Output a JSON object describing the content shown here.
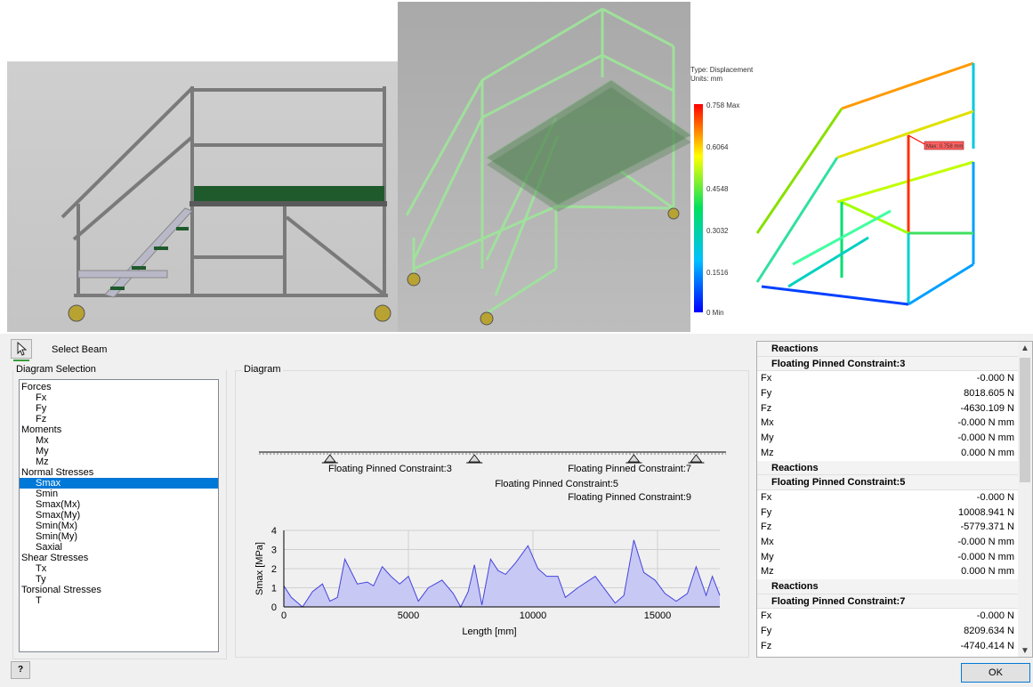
{
  "legend": {
    "type_label": "Type: Displacement",
    "units_label": "Units: mm",
    "max_label": "0.758 Max",
    "ticks": [
      "0.6064",
      "0.4548",
      "0.3032",
      "0.1516"
    ],
    "min_label": "0 Min",
    "probe_label": "Max: 0.758 mm"
  },
  "toolbar": {
    "select_beam_label": "Select Beam"
  },
  "diagram_selection": {
    "title": "Diagram Selection",
    "items": [
      {
        "label": "Forces",
        "level": 0
      },
      {
        "label": "Fx",
        "level": 1
      },
      {
        "label": "Fy",
        "level": 1
      },
      {
        "label": "Fz",
        "level": 1
      },
      {
        "label": "Moments",
        "level": 0
      },
      {
        "label": "Mx",
        "level": 1
      },
      {
        "label": "My",
        "level": 1
      },
      {
        "label": "Mz",
        "level": 1
      },
      {
        "label": "Normal Stresses",
        "level": 0
      },
      {
        "label": "Smax",
        "level": 1,
        "selected": true
      },
      {
        "label": "Smin",
        "level": 1
      },
      {
        "label": "Smax(Mx)",
        "level": 1
      },
      {
        "label": "Smax(My)",
        "level": 1
      },
      {
        "label": "Smin(Mx)",
        "level": 1
      },
      {
        "label": "Smin(My)",
        "level": 1
      },
      {
        "label": "Saxial",
        "level": 1
      },
      {
        "label": "Shear Stresses",
        "level": 0
      },
      {
        "label": "Tx",
        "level": 1
      },
      {
        "label": "Ty",
        "level": 1
      },
      {
        "label": "Torsional Stresses",
        "level": 0
      },
      {
        "label": "T",
        "level": 1
      }
    ]
  },
  "diagram": {
    "title": "Diagram",
    "constraints": [
      {
        "label": "Floating Pinned Constraint:3",
        "x": 1850
      },
      {
        "label": "Floating Pinned Constraint:5",
        "x": 7650
      },
      {
        "label": "Floating Pinned Constraint:7",
        "x": 14050
      },
      {
        "label": "Floating Pinned Constraint:9",
        "x": 16550
      }
    ]
  },
  "chart_data": {
    "type": "area",
    "xlabel": "Length [mm]",
    "ylabel": "Smax [MPa]",
    "xlim": [
      0,
      17500
    ],
    "ylim": [
      0,
      4
    ],
    "xticks": [
      0,
      5000,
      10000,
      15000
    ],
    "yticks": [
      0,
      1,
      2,
      3,
      4
    ],
    "grid": true,
    "color": "#4444dd",
    "fill": "#c8c8f5",
    "x": [
      0,
      300,
      750,
      1150,
      1550,
      1850,
      2150,
      2450,
      2950,
      3350,
      3600,
      3950,
      4300,
      4650,
      5000,
      5400,
      5800,
      6350,
      6800,
      7100,
      7400,
      7650,
      7950,
      8300,
      8600,
      8900,
      9300,
      9800,
      10200,
      10550,
      11000,
      11300,
      11800,
      12500,
      12900,
      13300,
      13650,
      14050,
      14450,
      14900,
      15300,
      15750,
      16200,
      16550,
      16950,
      17200,
      17500
    ],
    "y": [
      1.1,
      0.5,
      0.0,
      0.8,
      1.2,
      0.3,
      0.5,
      2.5,
      1.2,
      1.3,
      1.1,
      2.1,
      1.6,
      1.2,
      1.6,
      0.3,
      1.0,
      1.4,
      0.7,
      0.0,
      0.8,
      2.2,
      0.1,
      2.5,
      1.9,
      1.7,
      2.3,
      3.2,
      2.0,
      1.6,
      1.6,
      0.5,
      1.0,
      1.6,
      0.9,
      0.2,
      0.6,
      3.5,
      1.8,
      1.4,
      0.7,
      0.3,
      0.7,
      2.1,
      0.6,
      1.6,
      0.6
    ]
  },
  "reactions": {
    "groups": [
      {
        "header": "Reactions",
        "subheader": "Floating Pinned Constraint:3",
        "rows": [
          {
            "k": "Fx",
            "v": "-0.000 N"
          },
          {
            "k": "Fy",
            "v": "8018.605 N"
          },
          {
            "k": "Fz",
            "v": "-4630.109 N"
          },
          {
            "k": "Mx",
            "v": "-0.000 N mm"
          },
          {
            "k": "My",
            "v": "-0.000 N mm"
          },
          {
            "k": "Mz",
            "v": "0.000 N mm"
          }
        ]
      },
      {
        "header": "Reactions",
        "subheader": "Floating Pinned Constraint:5",
        "rows": [
          {
            "k": "Fx",
            "v": "-0.000 N"
          },
          {
            "k": "Fy",
            "v": "10008.941 N"
          },
          {
            "k": "Fz",
            "v": "-5779.371 N"
          },
          {
            "k": "Mx",
            "v": "-0.000 N mm"
          },
          {
            "k": "My",
            "v": "-0.000 N mm"
          },
          {
            "k": "Mz",
            "v": "0.000 N mm"
          }
        ]
      },
      {
        "header": "Reactions",
        "subheader": "Floating Pinned Constraint:7",
        "rows": [
          {
            "k": "Fx",
            "v": "-0.000 N"
          },
          {
            "k": "Fy",
            "v": "8209.634 N"
          },
          {
            "k": "Fz",
            "v": "-4740.414 N"
          }
        ]
      }
    ]
  },
  "buttons": {
    "help": "?",
    "ok": "OK"
  }
}
